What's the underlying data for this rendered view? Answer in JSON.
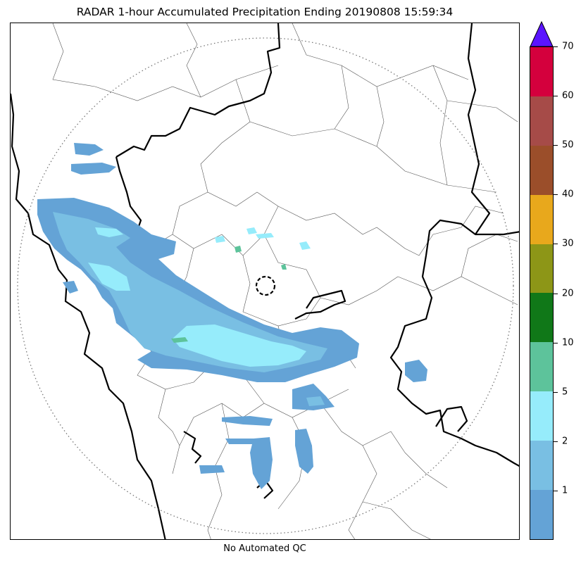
{
  "title": "RADAR 1-hour Accumulated Precipitation Ending 20190808 15:59:34",
  "footer_text": "No Automated QC",
  "colorbar": {
    "extend": "max",
    "extend_color": "#5a14ff",
    "levels": [
      {
        "upper": 1,
        "color": "#64a3d6"
      },
      {
        "upper": 2,
        "color": "#79bfe3"
      },
      {
        "upper": 5,
        "color": "#96ecfb"
      },
      {
        "upper": 10,
        "color": "#5dc39b"
      },
      {
        "upper": 20,
        "color": "#107818"
      },
      {
        "upper": 30,
        "color": "#8d9617"
      },
      {
        "upper": 40,
        "color": "#e8a81c"
      },
      {
        "upper": 50,
        "color": "#9b4e2a"
      },
      {
        "upper": 60,
        "color": "#a64b48"
      },
      {
        "upper": 70,
        "color": "#d4003d"
      }
    ],
    "tick_labels": [
      "1",
      "2",
      "5",
      "10",
      "20",
      "30",
      "40",
      "50",
      "60",
      "70"
    ]
  },
  "map": {
    "radar_range_ring": "dotted",
    "radar_site_marker": "dashed-circle",
    "state_boundary_color": "#000000",
    "district_boundary_color": "#333333"
  }
}
